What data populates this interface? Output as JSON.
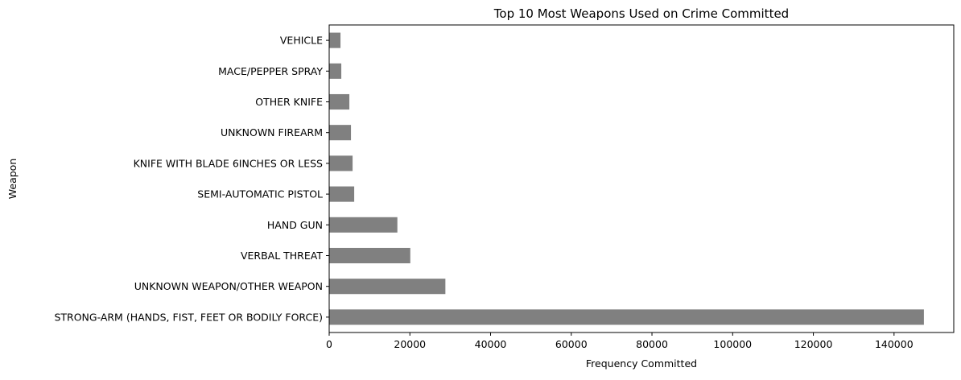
{
  "chart_data": {
    "type": "bar",
    "orientation": "horizontal",
    "title": "Top 10 Most Weapons Used on Crime Committed",
    "xlabel": "Frequency Committed",
    "ylabel": "Weapon",
    "categories": [
      "STRONG-ARM (HANDS, FIST, FEET OR BODILY FORCE)",
      "UNKNOWN WEAPON/OTHER WEAPON",
      "VERBAL THREAT",
      "HAND GUN",
      "SEMI-AUTOMATIC PISTOL",
      "KNIFE WITH BLADE 6INCHES OR LESS",
      "UNKNOWN FIREARM",
      "OTHER KNIFE",
      "MACE/PEPPER SPRAY",
      "VEHICLE"
    ],
    "values": [
      147400,
      28800,
      20100,
      16900,
      6200,
      5800,
      5400,
      5000,
      3000,
      2800
    ],
    "xlim": [
      0,
      154800
    ],
    "xticks": [
      0,
      20000,
      40000,
      60000,
      80000,
      100000,
      120000,
      140000
    ],
    "bar_color": "#808080",
    "grid": false,
    "legend": "none"
  }
}
